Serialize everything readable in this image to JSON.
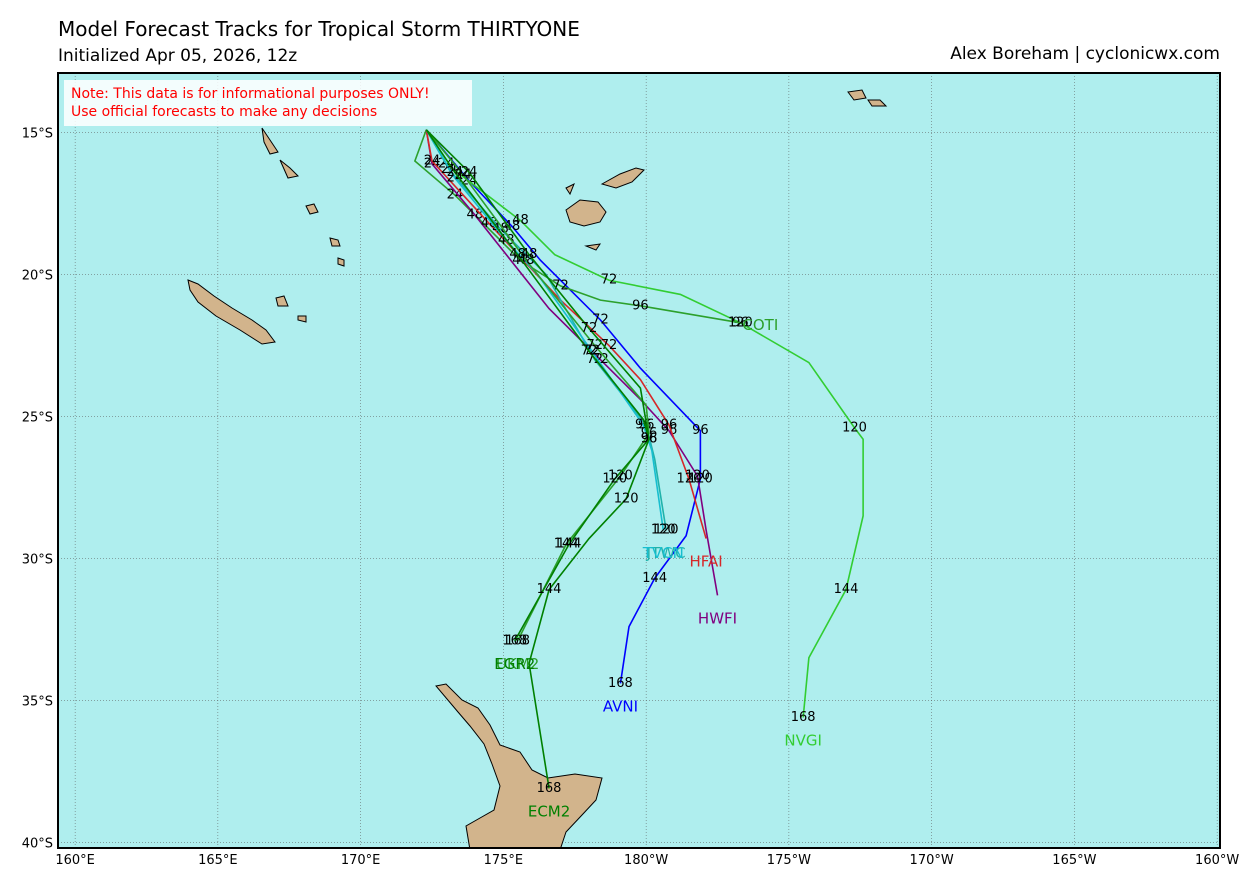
{
  "header": {
    "title": "Model Forecast Tracks  for Tropical Storm THIRTYONE",
    "subtitle": "Initialized Apr 05, 2026, 12z",
    "credit": "Alex Boreham | cyclonicwx.com"
  },
  "note": [
    "Note: This data is for informational purposes ONLY!",
    "Use official forecasts to make any decisions"
  ],
  "map": {
    "lon_range": [
      159.4,
      200.1
    ],
    "lat_range": [
      -12.9,
      -40.2
    ],
    "lon_ticks": [
      {
        "value": 160,
        "label": "160°E"
      },
      {
        "value": 165,
        "label": "165°E"
      },
      {
        "value": 170,
        "label": "170°E"
      },
      {
        "value": 175,
        "label": "175°E"
      },
      {
        "value": 180,
        "label": "180°W"
      },
      {
        "value": 185,
        "label": "175°W"
      },
      {
        "value": 190,
        "label": "170°W"
      },
      {
        "value": 195,
        "label": "165°W"
      },
      {
        "value": 200,
        "label": "160°W"
      }
    ],
    "lat_ticks": [
      {
        "value": -15,
        "label": "15°S"
      },
      {
        "value": -20,
        "label": "20°S"
      },
      {
        "value": -25,
        "label": "25°S"
      },
      {
        "value": -30,
        "label": "30°S"
      },
      {
        "value": -35,
        "label": "35°S"
      },
      {
        "value": -40,
        "label": "40°S"
      }
    ]
  },
  "tracks": [
    {
      "name": "AVNI",
      "color": "#0000ff",
      "points": [
        [
          172.3,
          -14.9
        ],
        [
          173.8,
          -16.7
        ],
        [
          175.3,
          -18.3
        ],
        [
          176.3,
          -19.5
        ],
        [
          178.4,
          -21.6
        ],
        [
          179.8,
          -23.3
        ],
        [
          181.9,
          -25.5
        ],
        [
          181.9,
          -27.2
        ],
        [
          181.4,
          -29.2
        ],
        [
          180.3,
          -30.7
        ],
        [
          179.4,
          -32.4
        ],
        [
          179.1,
          -34.4
        ]
      ],
      "hours": [
        null,
        24,
        48,
        null,
        72,
        null,
        96,
        120,
        null,
        144,
        null,
        168
      ]
    },
    {
      "name": "NVGI",
      "color": "#32cd32",
      "points": [
        [
          172.3,
          -14.9
        ],
        [
          173.0,
          -16.1
        ],
        [
          175.6,
          -18.1
        ],
        [
          176.8,
          -19.3
        ],
        [
          178.7,
          -20.2
        ],
        [
          181.2,
          -20.7
        ],
        [
          183.3,
          -21.7
        ],
        [
          185.7,
          -23.1
        ],
        [
          187.3,
          -25.4
        ],
        [
          187.6,
          -25.8
        ],
        [
          187.6,
          -28.5
        ],
        [
          187.0,
          -31.1
        ],
        [
          185.7,
          -33.5
        ],
        [
          185.5,
          -35.6
        ]
      ],
      "hours": [
        null,
        24,
        48,
        null,
        72,
        null,
        96,
        null,
        120,
        null,
        null,
        144,
        null,
        168
      ]
    },
    {
      "name": "COTI",
      "color": "#2ca02c",
      "points": [
        [
          172.3,
          -14.9
        ],
        [
          171.9,
          -16.0
        ],
        [
          173.3,
          -17.2
        ],
        [
          175.6,
          -19.5
        ],
        [
          177.0,
          -20.4
        ],
        [
          178.4,
          -20.9
        ],
        [
          179.8,
          -21.1
        ],
        [
          183.3,
          -21.7
        ]
      ],
      "hours": [
        null,
        null,
        24,
        48,
        72,
        null,
        96,
        120
      ]
    },
    {
      "name": "HWFI",
      "color": "#800080",
      "points": [
        [
          172.3,
          -14.9
        ],
        [
          172.5,
          -16.1
        ],
        [
          174.0,
          -17.9
        ],
        [
          176.6,
          -21.2
        ],
        [
          178.4,
          -23.0
        ],
        [
          179.8,
          -24.4
        ],
        [
          180.8,
          -25.5
        ],
        [
          181.8,
          -27.1
        ],
        [
          182.1,
          -29.0
        ],
        [
          182.5,
          -31.3
        ]
      ],
      "hours": [
        null,
        24,
        48,
        null,
        72,
        null,
        96,
        120,
        null,
        null
      ]
    },
    {
      "name": "HFAI",
      "color": "#d62728",
      "points": [
        [
          172.3,
          -14.9
        ],
        [
          172.5,
          -16.0
        ],
        [
          174.5,
          -18.2
        ],
        [
          177.0,
          -20.9
        ],
        [
          178.7,
          -22.5
        ],
        [
          179.8,
          -23.7
        ],
        [
          180.8,
          -25.3
        ],
        [
          181.5,
          -27.2
        ],
        [
          182.1,
          -29.3
        ]
      ],
      "hours": [
        null,
        24,
        48,
        null,
        72,
        null,
        96,
        120,
        null
      ]
    },
    {
      "name": "JTWC",
      "color": "#20b2aa",
      "points": [
        [
          172.3,
          -14.9
        ],
        [
          173.1,
          -16.3
        ],
        [
          174.9,
          -18.4
        ],
        [
          176.5,
          -20.0
        ],
        [
          178.2,
          -23.0
        ],
        [
          180.0,
          -25.3
        ],
        [
          180.3,
          -26.5
        ],
        [
          180.7,
          -29.0
        ]
      ],
      "hours": [
        null,
        24,
        48,
        null,
        72,
        96,
        null,
        120
      ]
    },
    {
      "name": "TVCN",
      "color": "#17becf",
      "points": [
        [
          172.3,
          -14.9
        ],
        [
          173.3,
          -16.6
        ],
        [
          175.1,
          -18.8
        ],
        [
          176.2,
          -20.0
        ],
        [
          178.1,
          -22.7
        ],
        [
          179.9,
          -25.3
        ],
        [
          180.2,
          -26.2
        ],
        [
          180.6,
          -29.0
        ]
      ],
      "hours": [
        null,
        24,
        48,
        null,
        72,
        96,
        null,
        120
      ]
    },
    {
      "name": "UKM2",
      "color": "#2ca02c",
      "points": [
        [
          172.3,
          -14.9
        ],
        [
          173.6,
          -16.5
        ],
        [
          175.8,
          -19.5
        ],
        [
          178.2,
          -22.5
        ],
        [
          180.0,
          -24.6
        ],
        [
          180.1,
          -25.6
        ],
        [
          179.1,
          -27.1
        ],
        [
          177.2,
          -29.5
        ],
        [
          175.5,
          -32.9
        ]
      ],
      "hours": [
        null,
        24,
        48,
        72,
        null,
        96,
        120,
        144,
        168
      ]
    },
    {
      "name": "EGR2",
      "color": "#008000",
      "points": [
        [
          172.3,
          -14.9
        ],
        [
          173.3,
          -16.4
        ],
        [
          175.5,
          -19.3
        ],
        [
          178.0,
          -22.7
        ],
        [
          179.9,
          -25.1
        ],
        [
          180.1,
          -25.8
        ],
        [
          178.9,
          -27.2
        ],
        [
          177.3,
          -29.5
        ],
        [
          175.4,
          -32.9
        ]
      ],
      "hours": [
        null,
        24,
        48,
        72,
        null,
        96,
        120,
        144,
        168
      ]
    },
    {
      "name": "ECM2",
      "color": "#008000",
      "points": [
        [
          172.3,
          -14.9
        ],
        [
          173.8,
          -16.4
        ],
        [
          175.9,
          -19.3
        ],
        [
          178.0,
          -21.9
        ],
        [
          179.8,
          -24.0
        ],
        [
          180.1,
          -25.8
        ],
        [
          179.3,
          -27.9
        ],
        [
          178.0,
          -29.3
        ],
        [
          176.6,
          -31.1
        ],
        [
          175.9,
          -33.7
        ],
        [
          176.6,
          -38.1
        ]
      ],
      "hours": [
        null,
        24,
        48,
        72,
        null,
        96,
        120,
        null,
        144,
        null,
        168
      ]
    }
  ]
}
